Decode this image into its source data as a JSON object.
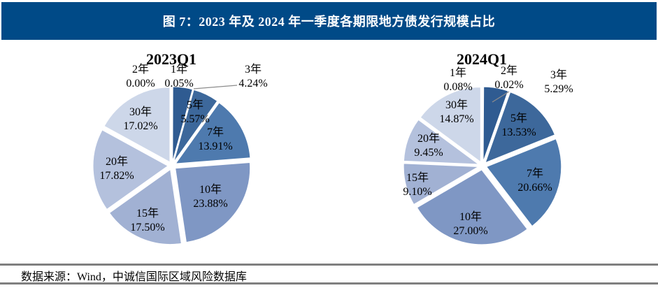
{
  "header": {
    "title": "图 7：2023 年及 2024 年一季度各期限地方债发行规模占比",
    "bg_color": "#004A87",
    "text_color": "#FFFFFF"
  },
  "footer": {
    "source_label": "数据来源：Wind，中诚信国际区域风险数据库"
  },
  "palette": {
    "slice_colors": [
      "#25507F",
      "#2A568A",
      "#2F5B91",
      "#3D689B",
      "#4E7AAE",
      "#7F97C4",
      "#A1B1D3",
      "#B4C1DD",
      "#CDD7E9"
    ],
    "leader_line": "#8C8C8C",
    "rule_gray": "#7F7F7F",
    "label_text": "#000000"
  },
  "chart_data": [
    {
      "type": "pie",
      "title": "2023Q1",
      "unit": "%",
      "legend": "none",
      "start_angle_deg": 0,
      "direction": "clockwise",
      "categories": [
        "1年",
        "2年",
        "3年",
        "5年",
        "7年",
        "10年",
        "15年",
        "20年",
        "30年"
      ],
      "values": [
        0.05,
        0.0,
        4.24,
        5.57,
        13.91,
        23.88,
        17.5,
        17.82,
        17.02
      ],
      "value_labels": [
        "0.05%",
        "0.00%",
        "4.24%",
        "5.57%",
        "13.91%",
        "23.88%",
        "17.50%",
        "17.82%",
        "17.02%"
      ]
    },
    {
      "type": "pie",
      "title": "2024Q1",
      "unit": "%",
      "legend": "none",
      "start_angle_deg": 0,
      "direction": "clockwise",
      "categories": [
        "1年",
        "2年",
        "3年",
        "5年",
        "7年",
        "10年",
        "15年",
        "20年",
        "30年"
      ],
      "values": [
        0.08,
        0.02,
        5.29,
        13.53,
        20.66,
        27.0,
        9.1,
        9.45,
        14.87
      ],
      "value_labels": [
        "0.08%",
        "0.02%",
        "5.29%",
        "13.53%",
        "20.66%",
        "27.00%",
        "9.10%",
        "9.45%",
        "14.87%"
      ]
    }
  ]
}
